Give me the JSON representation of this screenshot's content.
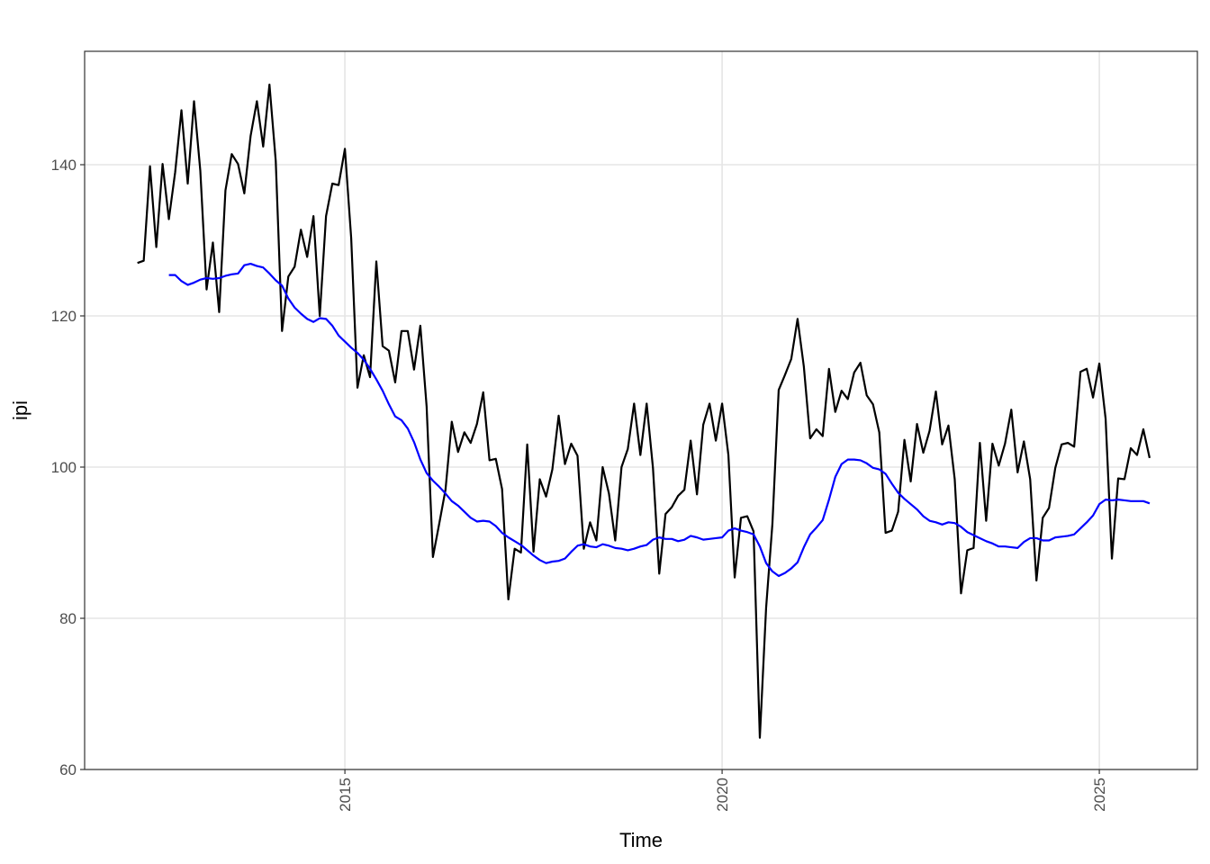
{
  "chart_data": {
    "type": "line",
    "xlabel": "Time",
    "ylabel": "ipi",
    "xlim": [
      2011.55,
      2026.3
    ],
    "ylim": [
      60,
      155
    ],
    "x_ticks": [
      {
        "value": 2015,
        "label": "2015"
      },
      {
        "value": 2020,
        "label": "2020"
      },
      {
        "value": 2025,
        "label": "2025"
      }
    ],
    "y_ticks": [
      {
        "value": 60,
        "label": "60"
      },
      {
        "value": 80,
        "label": "80"
      },
      {
        "value": 100,
        "label": "100"
      },
      {
        "value": 120,
        "label": "120"
      },
      {
        "value": 140,
        "label": "140"
      }
    ],
    "grid": true,
    "series": [
      {
        "color": "#000000",
        "start": 2012.25,
        "step": 0.0833333,
        "values": [
          127.0,
          127.3,
          139.8,
          129.1,
          140.1,
          132.8,
          139.0,
          147.2,
          137.5,
          148.4,
          139.2,
          123.5,
          129.7,
          120.5,
          136.6,
          141.4,
          140.1,
          136.2,
          143.8,
          148.4,
          142.4,
          150.6,
          140.5,
          118.0,
          125.2,
          126.5,
          131.4,
          127.8,
          133.2,
          120.0,
          133.2,
          137.5,
          137.3,
          142.1,
          130.3,
          110.5,
          114.8,
          111.9,
          127.2,
          116.0,
          115.4,
          111.2,
          118.0,
          118.0,
          112.9,
          118.7,
          108.0,
          88.1,
          92.5,
          97.0,
          106.0,
          102.0,
          104.6,
          103.2,
          105.7,
          109.9,
          100.9,
          101.1,
          97.1,
          82.5,
          89.2,
          88.7,
          103.0,
          88.8,
          98.4,
          96.1,
          99.7,
          106.8,
          100.4,
          103.1,
          101.5,
          89.2,
          92.7,
          90.3,
          100.0,
          96.5,
          90.3,
          100.0,
          102.4,
          108.4,
          101.6,
          108.4,
          99.9,
          85.9,
          93.8,
          94.7,
          96.2,
          97.0,
          103.5,
          96.4,
          105.6,
          108.4,
          103.5,
          108.4,
          101.6,
          85.4,
          93.3,
          93.5,
          91.5,
          64.2,
          81.4,
          92.5,
          110.2,
          112.2,
          114.3,
          119.6,
          113.3,
          103.8,
          105.0,
          104.1,
          113.0,
          107.3,
          110.1,
          109.0,
          112.5,
          113.8,
          109.5,
          108.3,
          104.6,
          91.3,
          91.6,
          94.1,
          103.6,
          98.1,
          105.7,
          101.9,
          104.8,
          110.0,
          103.0,
          105.5,
          98.4,
          83.3,
          89.0,
          89.3,
          103.2,
          92.9,
          103.1,
          100.2,
          103.1,
          107.6,
          99.3,
          103.4,
          98.4,
          85.0,
          93.3,
          94.6,
          99.9,
          103.0,
          103.2,
          102.7,
          112.6,
          113.0,
          109.2,
          113.7,
          106.4,
          87.9,
          98.5,
          98.4,
          102.5,
          101.6,
          105.0,
          101.2
        ]
      },
      {
        "color": "#0000ff",
        "start": 2012.667,
        "step": 0.0833333,
        "values": [
          125.4,
          125.4,
          124.6,
          124.1,
          124.4,
          124.8,
          125.0,
          124.9,
          125.0,
          125.3,
          125.5,
          125.6,
          126.7,
          126.9,
          126.6,
          126.4,
          125.6,
          124.7,
          124.0,
          122.3,
          121.1,
          120.3,
          119.6,
          119.2,
          119.7,
          119.6,
          118.7,
          117.4,
          116.6,
          115.8,
          115.1,
          114.2,
          113.0,
          111.6,
          110.1,
          108.3,
          106.7,
          106.2,
          105.1,
          103.3,
          101.0,
          99.2,
          98.2,
          97.4,
          96.5,
          95.5,
          94.9,
          94.1,
          93.3,
          92.8,
          92.9,
          92.8,
          92.2,
          91.3,
          90.7,
          90.2,
          89.7,
          89.0,
          88.3,
          87.7,
          87.3,
          87.5,
          87.6,
          87.9,
          88.8,
          89.6,
          89.8,
          89.5,
          89.4,
          89.8,
          89.6,
          89.3,
          89.2,
          89.0,
          89.2,
          89.5,
          89.7,
          90.4,
          90.7,
          90.5,
          90.5,
          90.2,
          90.4,
          90.9,
          90.7,
          90.4,
          90.5,
          90.6,
          90.7,
          91.6,
          91.9,
          91.6,
          91.4,
          91.1,
          89.5,
          87.3,
          86.2,
          85.6,
          86.0,
          86.6,
          87.4,
          89.4,
          91.1,
          92.0,
          93.0,
          95.7,
          98.7,
          100.4,
          101.0,
          101.0,
          100.9,
          100.5,
          99.9,
          99.7,
          99.1,
          97.8,
          96.6,
          95.8,
          95.1,
          94.4,
          93.5,
          92.9,
          92.7,
          92.4,
          92.7,
          92.6,
          92.1,
          91.4,
          91.0,
          90.6,
          90.2,
          89.9,
          89.5,
          89.5,
          89.4,
          89.3,
          90.1,
          90.6,
          90.6,
          90.3,
          90.3,
          90.7,
          90.8,
          90.9,
          91.1,
          91.9,
          92.7,
          93.6,
          95.1,
          95.7,
          95.6,
          95.7,
          95.6,
          95.5,
          95.5,
          95.5,
          95.2
        ]
      }
    ]
  }
}
